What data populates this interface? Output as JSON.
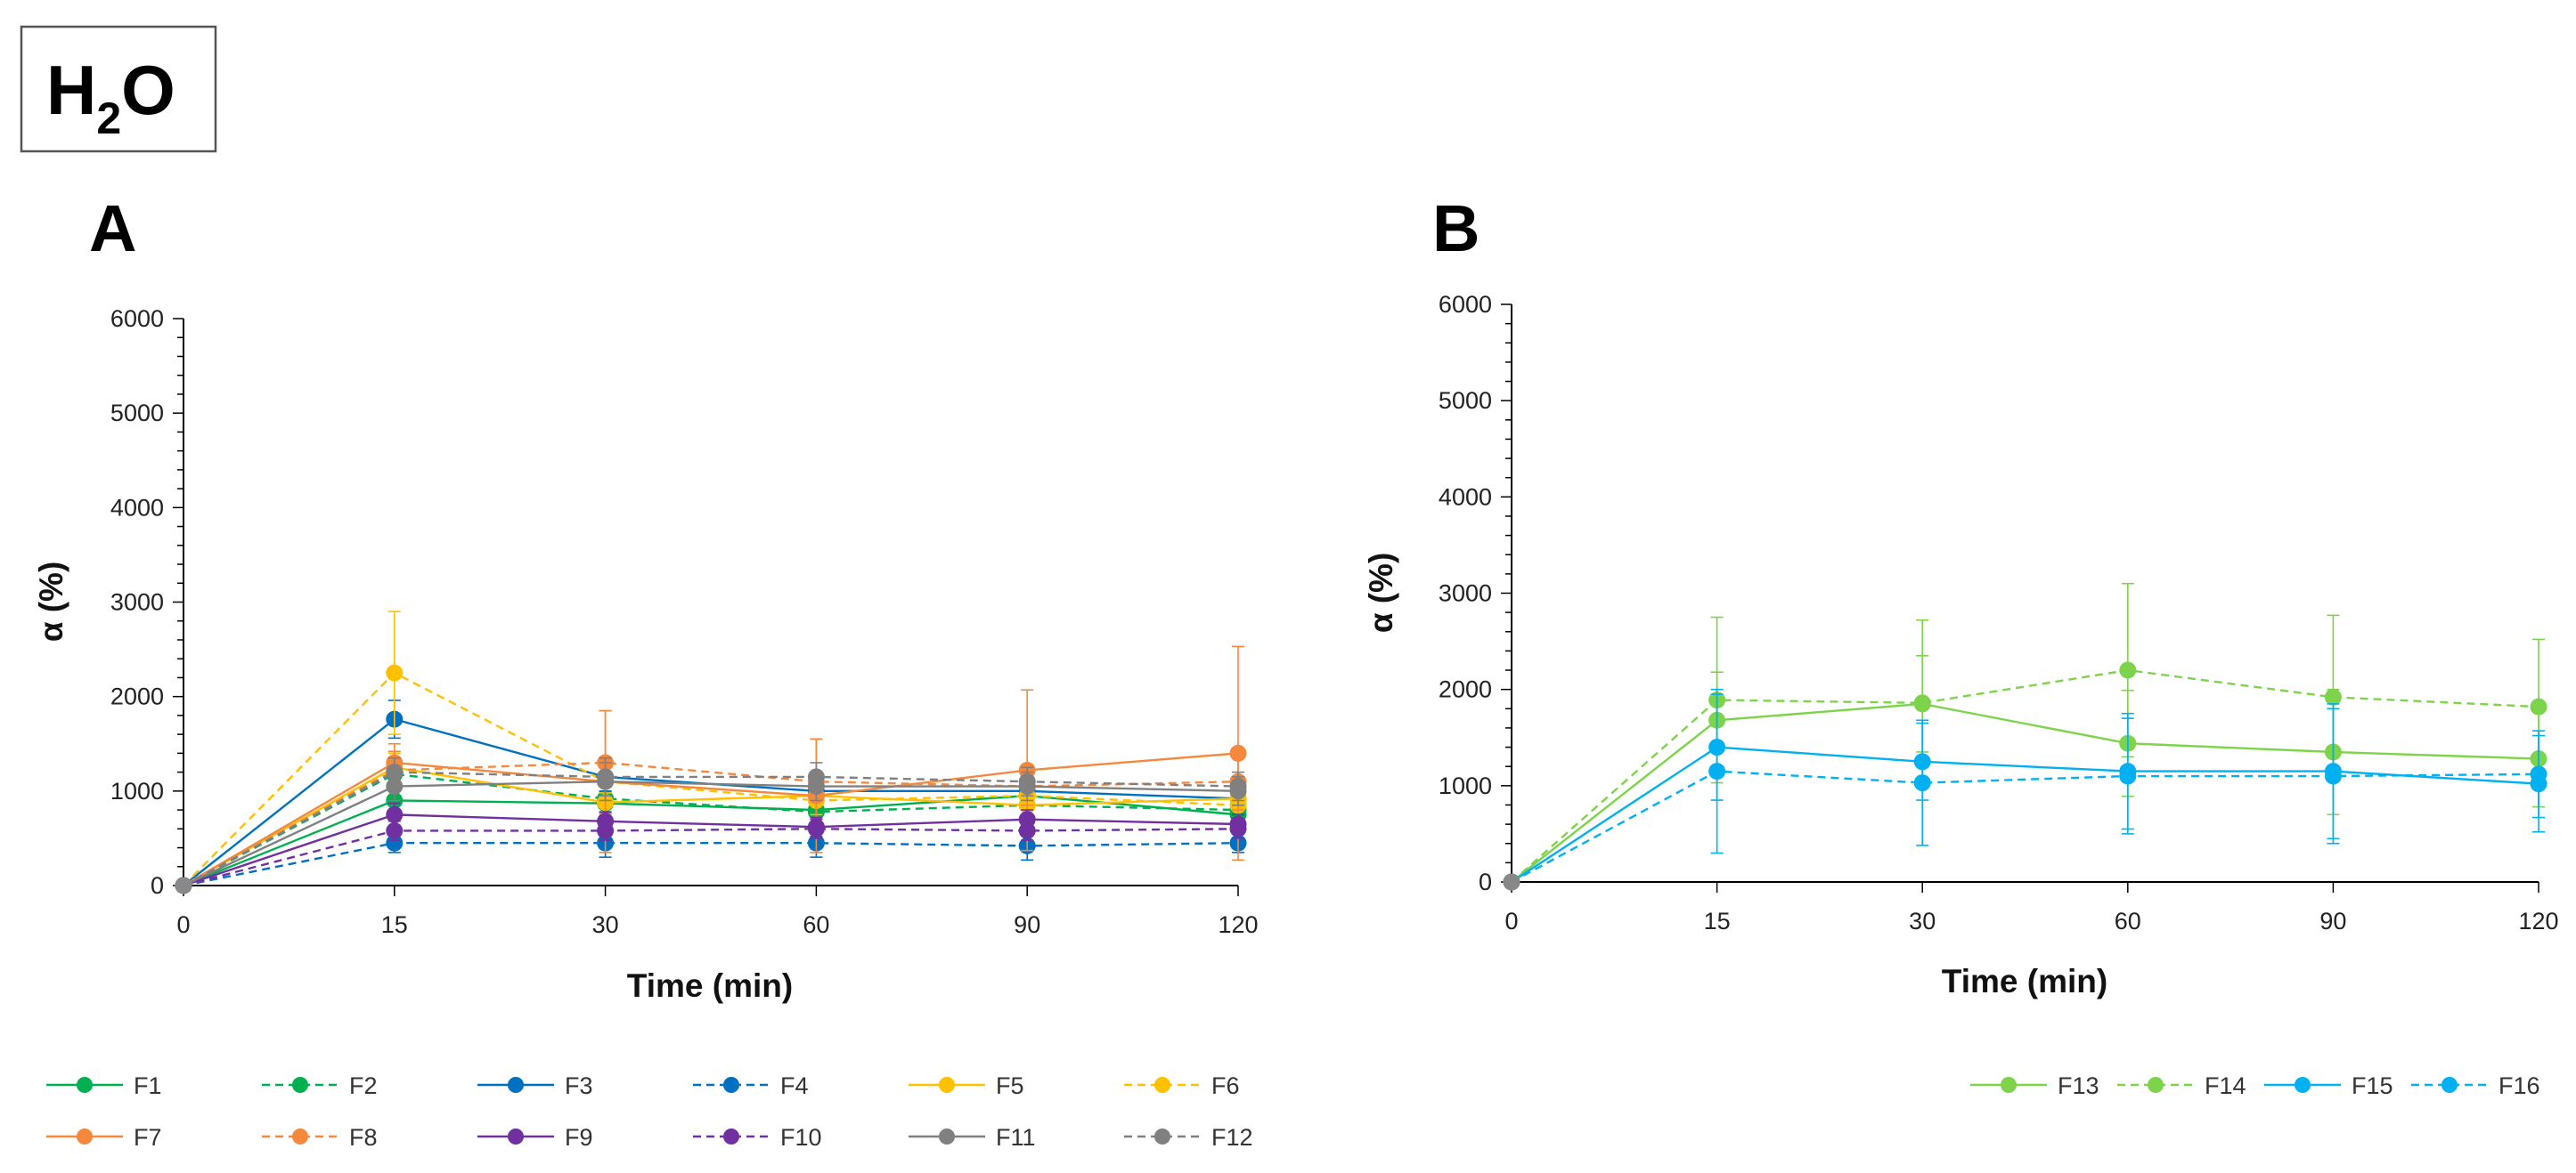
{
  "label_box": {
    "text_main": "H",
    "text_sub": "2",
    "text_tail": "O"
  },
  "colors": {
    "green": "#00b050",
    "blue": "#0070c0",
    "gold": "#ffc000",
    "orange": "#f4883d",
    "purple": "#7030a0",
    "gray": "#808080",
    "lightgreen": "#7dd44a",
    "cyan": "#00b0f0",
    "axis": "#000000"
  },
  "chart_data": [
    {
      "type": "line",
      "panel_label": "A",
      "xlabel": "Time (min)",
      "ylabel": "α (%)",
      "categories": [
        "0",
        "15",
        "30",
        "60",
        "90",
        "120"
      ],
      "ylim": [
        0,
        6000
      ],
      "yticks": [
        "0",
        "1000",
        "2000",
        "3000",
        "4000",
        "5000",
        "6000"
      ],
      "legend_position": "bottom",
      "series": [
        {
          "name": "F1",
          "color": "green",
          "dashed": false,
          "values": [
            0,
            900,
            870,
            800,
            950,
            750
          ],
          "errors": [
            0,
            150,
            120,
            100,
            100,
            80
          ]
        },
        {
          "name": "F2",
          "color": "green",
          "dashed": true,
          "values": [
            0,
            1180,
            920,
            780,
            850,
            800
          ],
          "errors": [
            0,
            150,
            150,
            120,
            100,
            100
          ]
        },
        {
          "name": "F3",
          "color": "blue",
          "dashed": false,
          "values": [
            0,
            1760,
            1150,
            1000,
            1000,
            920
          ],
          "errors": [
            0,
            200,
            150,
            150,
            120,
            120
          ]
        },
        {
          "name": "F4",
          "color": "blue",
          "dashed": true,
          "values": [
            0,
            450,
            450,
            450,
            420,
            450
          ],
          "errors": [
            0,
            100,
            150,
            150,
            150,
            100
          ]
        },
        {
          "name": "F5",
          "color": "gold",
          "dashed": false,
          "values": [
            0,
            1250,
            880,
            950,
            850,
            920
          ],
          "errors": [
            0,
            150,
            100,
            100,
            100,
            100
          ]
        },
        {
          "name": "F6",
          "color": "gold",
          "dashed": true,
          "values": [
            0,
            2250,
            1100,
            900,
            950,
            850
          ],
          "errors": [
            0,
            650,
            200,
            150,
            150,
            150
          ]
        },
        {
          "name": "F7",
          "color": "orange",
          "dashed": false,
          "values": [
            0,
            1300,
            1100,
            950,
            1220,
            1400
          ],
          "errors": [
            0,
            200,
            750,
            600,
            850,
            1130
          ]
        },
        {
          "name": "F8",
          "color": "orange",
          "dashed": true,
          "values": [
            0,
            1220,
            1300,
            1100,
            1050,
            1100
          ],
          "errors": [
            0,
            200,
            550,
            450,
            200,
            300
          ]
        },
        {
          "name": "F9",
          "color": "purple",
          "dashed": false,
          "values": [
            0,
            750,
            680,
            620,
            700,
            650
          ],
          "errors": [
            0,
            120,
            100,
            100,
            100,
            100
          ]
        },
        {
          "name": "F10",
          "color": "purple",
          "dashed": true,
          "values": [
            0,
            580,
            580,
            600,
            580,
            600
          ],
          "errors": [
            0,
            100,
            100,
            100,
            100,
            100
          ]
        },
        {
          "name": "F11",
          "color": "gray",
          "dashed": false,
          "values": [
            0,
            1050,
            1100,
            1050,
            1050,
            1000
          ],
          "errors": [
            0,
            150,
            200,
            150,
            150,
            150
          ]
        },
        {
          "name": "F12",
          "color": "gray",
          "dashed": true,
          "values": [
            0,
            1200,
            1150,
            1150,
            1100,
            1050
          ],
          "errors": [
            0,
            150,
            200,
            150,
            150,
            150
          ]
        }
      ]
    },
    {
      "type": "line",
      "panel_label": "B",
      "xlabel": "Time (min)",
      "ylabel": "α (%)",
      "categories": [
        "0",
        "15",
        "30",
        "60",
        "90",
        "120"
      ],
      "ylim": [
        0,
        6000
      ],
      "yticks": [
        "0",
        "1000",
        "2000",
        "3000",
        "4000",
        "5000",
        "6000"
      ],
      "legend_position": "bottom",
      "series": [
        {
          "name": "F13",
          "color": "lightgreen",
          "dashed": false,
          "values": [
            0,
            1680,
            1850,
            1440,
            1350,
            1280
          ],
          "errors": [
            0,
            500,
            500,
            550,
            650,
            500
          ]
        },
        {
          "name": "F14",
          "color": "lightgreen",
          "dashed": true,
          "values": [
            0,
            1890,
            1860,
            2200,
            1920,
            1820
          ],
          "errors": [
            0,
            860,
            860,
            900,
            850,
            700
          ]
        },
        {
          "name": "F15",
          "color": "cyan",
          "dashed": false,
          "values": [
            0,
            1400,
            1250,
            1150,
            1150,
            1020
          ],
          "errors": [
            0,
            550,
            400,
            600,
            700,
            500
          ]
        },
        {
          "name": "F16",
          "color": "cyan",
          "dashed": true,
          "values": [
            0,
            1150,
            1030,
            1100,
            1100,
            1120
          ],
          "errors": [
            0,
            850,
            650,
            600,
            700,
            450
          ]
        }
      ]
    }
  ]
}
